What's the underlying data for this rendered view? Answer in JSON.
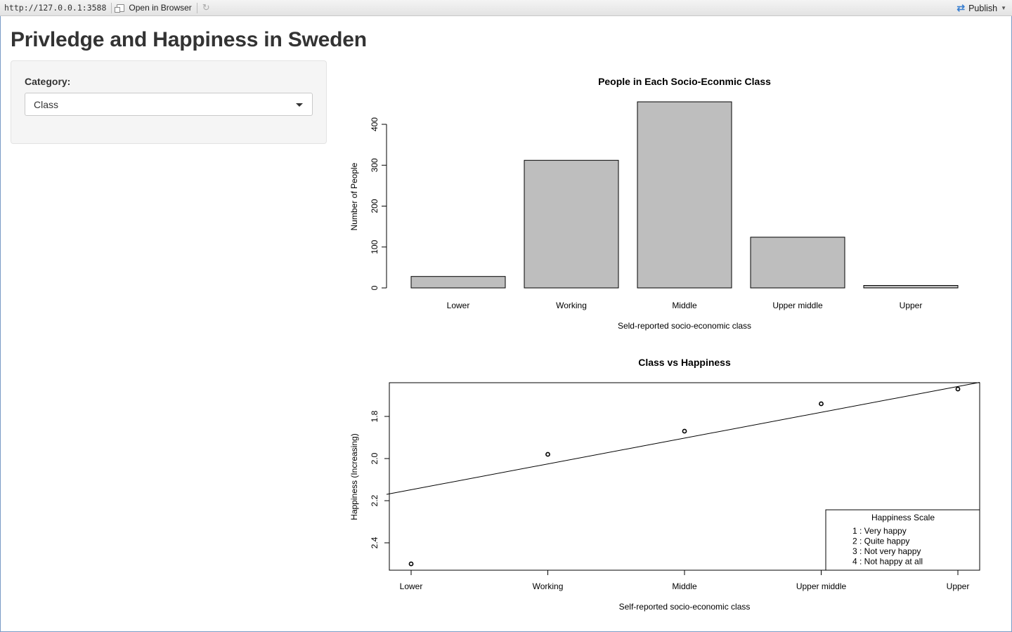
{
  "browser": {
    "url": "http://127.0.0.1:3588",
    "open_label": "Open in Browser",
    "publish_label": "Publish"
  },
  "page": {
    "title": "Privledge and Happiness in Sweden"
  },
  "sidebar": {
    "category_label": "Category:",
    "category_value": "Class"
  },
  "chart_data": [
    {
      "type": "bar",
      "title": "People in Each Socio-Econmic Class",
      "xlabel": "Seld-reported socio-economic class",
      "ylabel": "Number of People",
      "categories": [
        "Lower",
        "Working",
        "Middle",
        "Upper middle",
        "Upper"
      ],
      "values": [
        28,
        312,
        455,
        124,
        6
      ],
      "ylim": [
        0,
        455
      ],
      "yticks": [
        "0",
        "100",
        "200",
        "300",
        "400"
      ],
      "bar_color": "#bebebe"
    },
    {
      "type": "scatter",
      "title": "Class vs Happiness",
      "xlabel": "Self-reported socio-economic class",
      "ylabel": "Happiness (Increasing)",
      "categories": [
        "Lower",
        "Working",
        "Middle",
        "Upper middle",
        "Upper"
      ],
      "values": [
        2.5,
        1.98,
        1.87,
        1.74,
        1.67
      ],
      "y_axis_inverted": true,
      "ylim": [
        1.64,
        2.53
      ],
      "yticks": [
        "1.8",
        "2.0",
        "2.2",
        "2.4"
      ],
      "fit_line": {
        "intercept": 2.2705,
        "slope": -0.1225
      },
      "legend": {
        "title": "Happiness Scale",
        "position": "bottom-right",
        "items": [
          "1 : Very happy",
          "2 : Quite happy",
          "3 : Not very happy",
          "4 : Not happy at all"
        ]
      }
    }
  ]
}
